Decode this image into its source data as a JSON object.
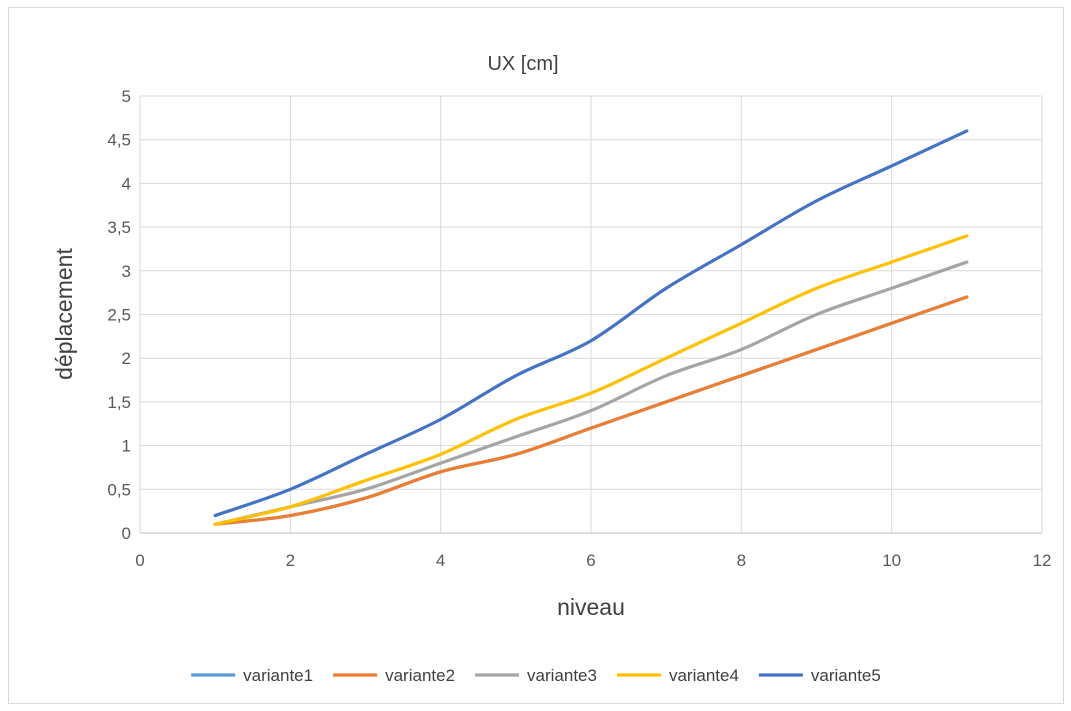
{
  "chart_data": {
    "type": "line",
    "title": "UX [cm]",
    "xlabel": "niveau",
    "ylabel": "déplacement",
    "xlim": [
      0,
      12
    ],
    "ylim": [
      0,
      5
    ],
    "x_ticks": [
      "0",
      "2",
      "4",
      "6",
      "8",
      "10",
      "12"
    ],
    "y_ticks": [
      "0",
      "0,5",
      "1",
      "1,5",
      "2",
      "2,5",
      "3",
      "3,5",
      "4",
      "4,5",
      "5"
    ],
    "grid": true,
    "legend_position": "bottom",
    "x": [
      1,
      2,
      3,
      4,
      5,
      6,
      7,
      8,
      9,
      10,
      11
    ],
    "series": [
      {
        "name": "variante1",
        "color": "#5b9bd5",
        "values": [
          0.1,
          0.2,
          0.4,
          0.7,
          0.9,
          1.2,
          1.5,
          1.8,
          2.1,
          2.4,
          2.7
        ]
      },
      {
        "name": "variante2",
        "color": "#ed7d31",
        "values": [
          0.1,
          0.2,
          0.4,
          0.7,
          0.9,
          1.2,
          1.5,
          1.8,
          2.1,
          2.4,
          2.7
        ]
      },
      {
        "name": "variante3",
        "color": "#a5a5a5",
        "values": [
          0.1,
          0.3,
          0.5,
          0.8,
          1.1,
          1.4,
          1.8,
          2.1,
          2.5,
          2.8,
          3.1
        ]
      },
      {
        "name": "variante4",
        "color": "#ffc000",
        "values": [
          0.1,
          0.3,
          0.6,
          0.9,
          1.3,
          1.6,
          2.0,
          2.4,
          2.8,
          3.1,
          3.4
        ]
      },
      {
        "name": "variante5",
        "color": "#4472c4",
        "values": [
          0.2,
          0.5,
          0.9,
          1.3,
          1.8,
          2.2,
          2.8,
          3.3,
          3.8,
          4.2,
          4.6
        ]
      }
    ]
  }
}
